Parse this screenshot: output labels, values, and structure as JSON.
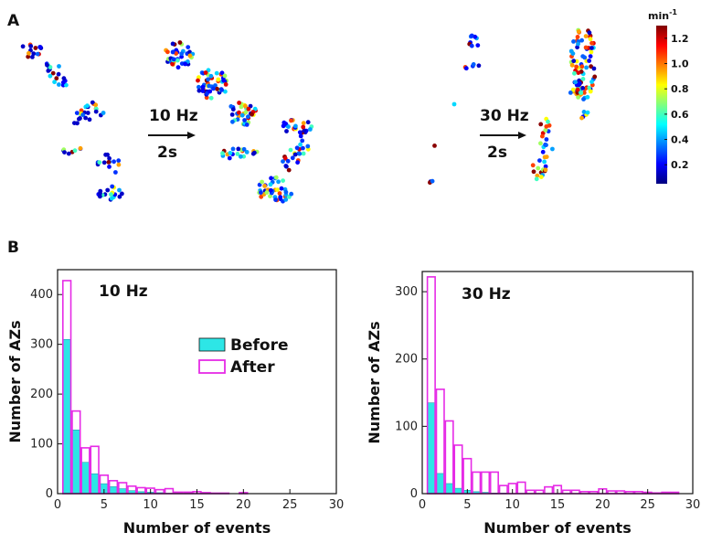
{
  "panel_a": {
    "label": "A",
    "colorbar": {
      "unit_base": "min",
      "unit_exp": "-1",
      "ticks": [
        "1.2",
        "1.0",
        "0.8",
        "0.6",
        "0.4",
        "0.2"
      ],
      "tick_values": [
        1.2,
        1.0,
        0.8,
        0.6,
        0.4,
        0.2
      ],
      "range": [
        0.05,
        1.3
      ]
    },
    "stim1": {
      "freq": "10 Hz",
      "duration": "2s"
    },
    "stim2": {
      "freq": "30 Hz",
      "duration": "2s"
    }
  },
  "panel_b": {
    "label": "B"
  },
  "chart_data": [
    {
      "type": "bar",
      "title": "10 Hz",
      "xlabel": "Number of events",
      "ylabel": "Number of AZs",
      "xlim": [
        0,
        30
      ],
      "ylim": [
        0,
        450
      ],
      "xticks": [
        0,
        5,
        10,
        15,
        20,
        25,
        30
      ],
      "yticks": [
        0,
        100,
        200,
        300,
        400
      ],
      "x": [
        1,
        2,
        3,
        4,
        5,
        6,
        7,
        8,
        9,
        10,
        11,
        12,
        13,
        14,
        15,
        16,
        17,
        18,
        19,
        20
      ],
      "series": [
        {
          "name": "Before",
          "color": "#2de6e6",
          "values": [
            310,
            128,
            63,
            40,
            20,
            14,
            10,
            6,
            4,
            3,
            2,
            1,
            1,
            1,
            0,
            0,
            0,
            0,
            0,
            0
          ]
        },
        {
          "name": "After",
          "color": "#e62be6",
          "values": [
            428,
            166,
            92,
            95,
            37,
            26,
            22,
            15,
            12,
            11,
            8,
            10,
            3,
            3,
            4,
            2,
            1,
            1,
            0,
            2
          ]
        }
      ]
    },
    {
      "type": "bar",
      "title": "30 Hz",
      "xlabel": "Number of events",
      "ylabel": "Number of AZs",
      "xlim": [
        0,
        30
      ],
      "ylim": [
        0,
        330
      ],
      "xticks": [
        0,
        5,
        10,
        15,
        20,
        25,
        30
      ],
      "yticks": [
        0,
        100,
        200,
        300
      ],
      "x": [
        1,
        2,
        3,
        4,
        5,
        6,
        7,
        8,
        9,
        10,
        11,
        12,
        13,
        14,
        15,
        16,
        17,
        18,
        19,
        20,
        21,
        22,
        23,
        24,
        25,
        26,
        27,
        28
      ],
      "series": [
        {
          "name": "Before",
          "color": "#2de6e6",
          "values": [
            135,
            30,
            15,
            8,
            5,
            3,
            2,
            1,
            1,
            0,
            0,
            0,
            0,
            0,
            0,
            0,
            0,
            0,
            0,
            0,
            0,
            0,
            0,
            0,
            0,
            0,
            0,
            0
          ]
        },
        {
          "name": "After",
          "color": "#e62be6",
          "values": [
            322,
            155,
            108,
            72,
            52,
            32,
            32,
            32,
            12,
            15,
            17,
            5,
            5,
            10,
            12,
            5,
            5,
            3,
            3,
            7,
            4,
            4,
            3,
            3,
            2,
            1,
            2,
            2
          ]
        }
      ]
    }
  ]
}
